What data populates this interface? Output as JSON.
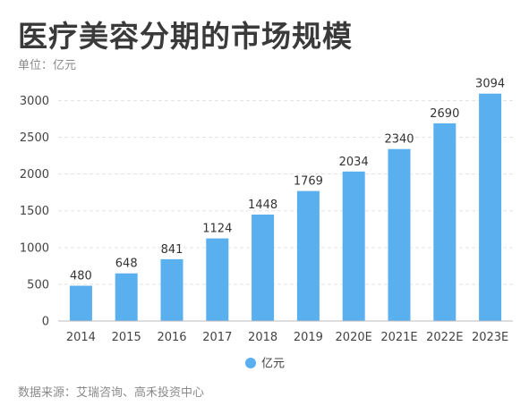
{
  "title": "医疗美容分期的市场规模",
  "unit_label": "单位：亿元",
  "source": "数据来源：艾瑞咨询、高禾投资中心",
  "colors": {
    "bar": "#5aafef",
    "grid": "#e3e3e3",
    "axis": "#bbbbbb",
    "title": "#3a3a3a"
  },
  "chart_data": {
    "type": "bar",
    "categories": [
      "2014",
      "2015",
      "2016",
      "2017",
      "2018",
      "2019",
      "2020E",
      "2021E",
      "2022E",
      "2023E"
    ],
    "series": [
      {
        "name": "亿元",
        "values": [
          480,
          648,
          841,
          1124,
          1448,
          1769,
          2034,
          2340,
          2690,
          3094
        ]
      }
    ],
    "yticks": [
      0,
      500,
      1000,
      1500,
      2000,
      2500,
      3000
    ],
    "ylim": [
      0,
      3200
    ],
    "grid": true,
    "legend_position": "bottom-center"
  }
}
